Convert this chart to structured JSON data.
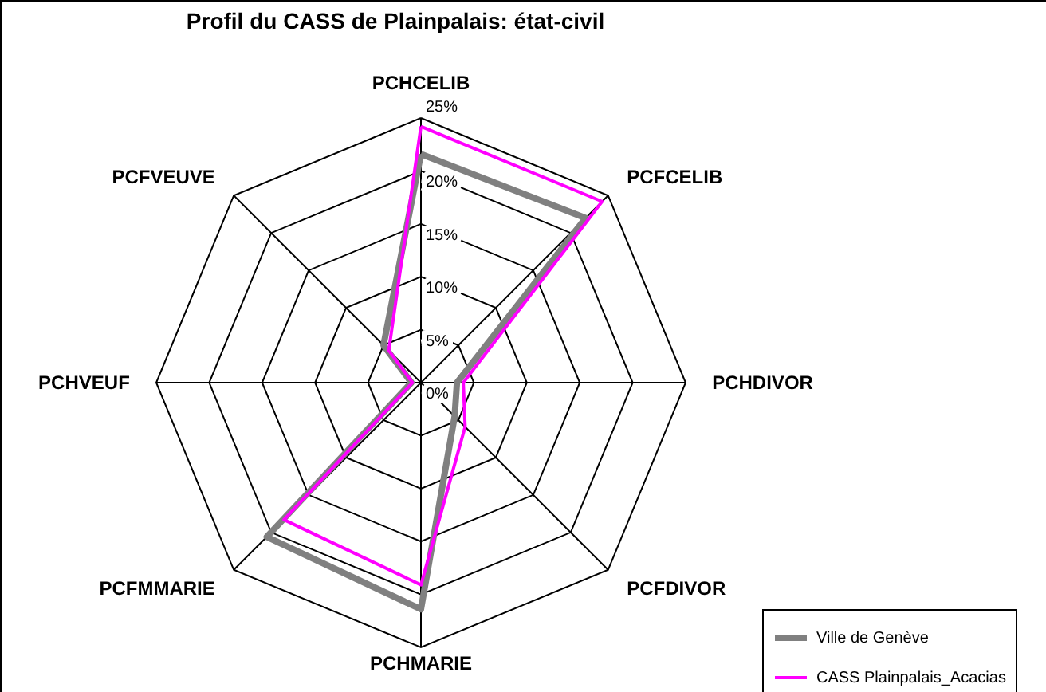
{
  "chart_data": {
    "type": "radar",
    "title": "Profil du CASS de Plainpalais: état-civil",
    "categories": [
      "PCHCELIB",
      "PCFCELIB",
      "PCHDIVOR",
      "PCFDIVOR",
      "PCHMARIE",
      "PCFMMARIE",
      "PCHVEUF",
      "PCFVEUVE"
    ],
    "series": [
      {
        "name": "Ville de Genève",
        "color": "#808080",
        "values": [
          21.6,
          22,
          3.4,
          4.5,
          21.4,
          20.6,
          0.9,
          5
        ]
      },
      {
        "name": "CASS Plainpalais_Acacias",
        "color": "#ff00ff",
        "values": [
          24.2,
          24.2,
          4,
          5.9,
          19.1,
          18.3,
          0.8,
          4.3
        ]
      }
    ],
    "ylim": [
      0,
      25
    ],
    "yticks": [
      {
        "value": 0,
        "label": "0%"
      },
      {
        "value": 5,
        "label": "5%"
      },
      {
        "value": 10,
        "label": "10%"
      },
      {
        "value": 15,
        "label": "15%"
      },
      {
        "value": 20,
        "label": "20%"
      },
      {
        "value": 25,
        "label": "25%"
      }
    ],
    "grid": true,
    "legend": "bottom right"
  }
}
